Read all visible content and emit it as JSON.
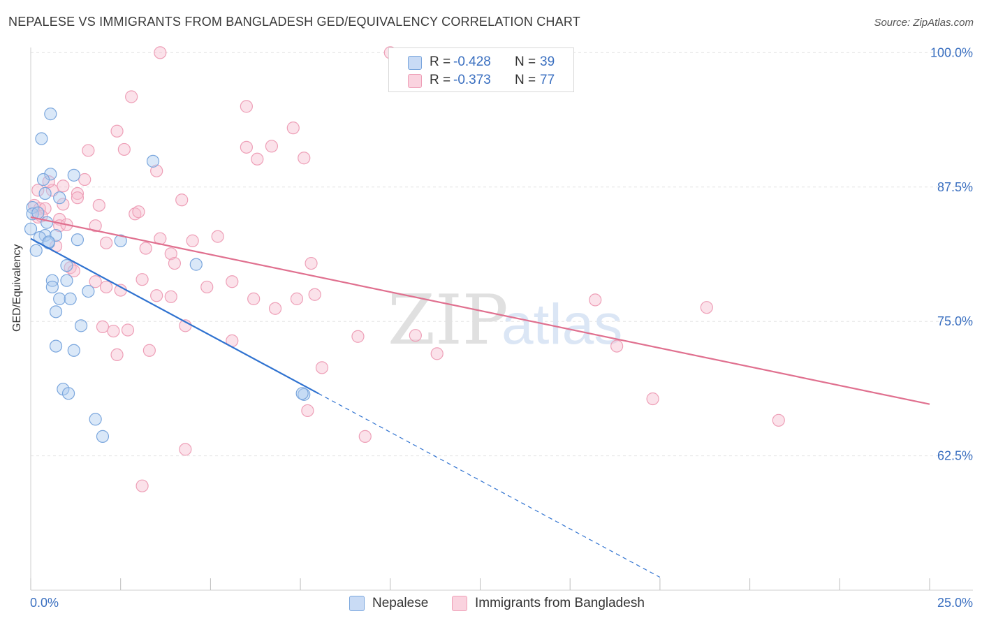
{
  "title": "NEPALESE VS IMMIGRANTS FROM BANGLADESH GED/EQUIVALENCY CORRELATION CHART",
  "source": "Source: ZipAtlas.com",
  "watermark": {
    "zip": "ZIP",
    "atlas": "atlas"
  },
  "legend_top": {
    "r_label": "R =",
    "n_label": "N =",
    "rows": [
      {
        "r": "-0.428",
        "n": "39"
      },
      {
        "r": "-0.373",
        "n": "77"
      }
    ]
  },
  "colors": {
    "blue_fill": "#aecbf0",
    "blue_stroke": "#7aa6dd",
    "blue_line": "#2f72d0",
    "pink_fill": "#f7bfd0",
    "pink_stroke": "#ee9fb7",
    "pink_line": "#e0708f",
    "tick_label": "#3a6fc0",
    "grid": "#e4e4e4"
  },
  "chart_data": {
    "type": "scatter",
    "title": "NEPALESE VS IMMIGRANTS FROM BANGLADESH GED/EQUIVALENCY CORRELATION CHART",
    "xlabel": "",
    "ylabel": "GED/Equivalency",
    "xlim": [
      0,
      25
    ],
    "ylim": [
      50,
      101
    ],
    "x_tick_labels": [
      "0.0%",
      "25.0%"
    ],
    "y_ticks": [
      62.5,
      75.0,
      87.5,
      100.0
    ],
    "y_tick_labels": [
      "62.5%",
      "75.0%",
      "87.5%",
      "100.0%"
    ],
    "series": [
      {
        "name": "Nepalese",
        "color": "#aecbf0",
        "trend": {
          "x0": 0.0,
          "y0": 82.7,
          "x1": 8.0,
          "y1": 68.3,
          "dash_to_x": 17.5
        },
        "points": [
          [
            0.55,
            94.3
          ],
          [
            0.3,
            92.0
          ],
          [
            0.55,
            88.7
          ],
          [
            0.35,
            88.2
          ],
          [
            1.2,
            88.6
          ],
          [
            3.4,
            89.9
          ],
          [
            0.4,
            86.9
          ],
          [
            0.8,
            86.5
          ],
          [
            0.05,
            85.6
          ],
          [
            0.05,
            85.0
          ],
          [
            0.45,
            84.2
          ],
          [
            0.0,
            83.6
          ],
          [
            0.4,
            83.0
          ],
          [
            0.7,
            83.0
          ],
          [
            0.25,
            82.8
          ],
          [
            1.3,
            82.6
          ],
          [
            2.5,
            82.5
          ],
          [
            0.5,
            82.3
          ],
          [
            0.15,
            81.6
          ],
          [
            1.0,
            80.2
          ],
          [
            4.6,
            80.3
          ],
          [
            1.0,
            78.8
          ],
          [
            0.6,
            78.8
          ],
          [
            0.6,
            78.2
          ],
          [
            1.6,
            77.8
          ],
          [
            0.8,
            77.1
          ],
          [
            1.1,
            77.1
          ],
          [
            0.7,
            75.9
          ],
          [
            1.4,
            74.6
          ],
          [
            0.7,
            72.7
          ],
          [
            1.2,
            72.3
          ],
          [
            0.9,
            68.7
          ],
          [
            1.05,
            68.3
          ],
          [
            7.6,
            68.2
          ],
          [
            7.55,
            68.3
          ],
          [
            1.8,
            65.9
          ],
          [
            2.0,
            64.3
          ],
          [
            0.2,
            85.1
          ],
          [
            0.5,
            82.4
          ]
        ]
      },
      {
        "name": "Immigrants from Bangladesh",
        "color": "#f7bfd0",
        "trend": {
          "x0": 0.0,
          "y0": 84.7,
          "x1": 25.0,
          "y1": 67.3
        },
        "points": [
          [
            3.6,
            100.0
          ],
          [
            10.0,
            100.0
          ],
          [
            2.8,
            95.9
          ],
          [
            6.0,
            95.0
          ],
          [
            2.4,
            92.7
          ],
          [
            7.3,
            93.0
          ],
          [
            1.6,
            90.9
          ],
          [
            2.6,
            91.0
          ],
          [
            6.0,
            91.2
          ],
          [
            6.7,
            91.3
          ],
          [
            6.3,
            90.1
          ],
          [
            7.6,
            90.2
          ],
          [
            3.5,
            89.0
          ],
          [
            1.5,
            88.2
          ],
          [
            0.9,
            87.6
          ],
          [
            0.6,
            87.2
          ],
          [
            0.2,
            87.2
          ],
          [
            1.3,
            86.9
          ],
          [
            4.2,
            86.3
          ],
          [
            1.3,
            86.5
          ],
          [
            0.9,
            85.9
          ],
          [
            1.9,
            85.8
          ],
          [
            0.1,
            85.8
          ],
          [
            0.25,
            85.5
          ],
          [
            0.4,
            85.5
          ],
          [
            2.9,
            85.0
          ],
          [
            3.0,
            85.2
          ],
          [
            0.8,
            84.5
          ],
          [
            0.2,
            84.7
          ],
          [
            0.3,
            84.8
          ],
          [
            0.8,
            83.9
          ],
          [
            1.8,
            83.9
          ],
          [
            5.2,
            82.9
          ],
          [
            3.6,
            82.7
          ],
          [
            4.5,
            82.5
          ],
          [
            2.1,
            82.3
          ],
          [
            0.7,
            82.0
          ],
          [
            3.2,
            81.8
          ],
          [
            3.9,
            81.3
          ],
          [
            4.0,
            80.4
          ],
          [
            7.8,
            80.4
          ],
          [
            1.1,
            80.0
          ],
          [
            1.2,
            79.7
          ],
          [
            3.1,
            78.9
          ],
          [
            5.6,
            78.7
          ],
          [
            1.8,
            78.7
          ],
          [
            2.1,
            78.2
          ],
          [
            4.9,
            78.2
          ],
          [
            2.5,
            77.9
          ],
          [
            7.9,
            77.5
          ],
          [
            3.5,
            77.4
          ],
          [
            3.9,
            77.3
          ],
          [
            6.2,
            77.1
          ],
          [
            7.4,
            77.1
          ],
          [
            15.7,
            77.0
          ],
          [
            18.8,
            76.3
          ],
          [
            6.8,
            76.2
          ],
          [
            2.0,
            74.5
          ],
          [
            4.3,
            74.6
          ],
          [
            2.3,
            74.1
          ],
          [
            2.7,
            74.2
          ],
          [
            9.1,
            73.6
          ],
          [
            10.7,
            73.7
          ],
          [
            5.6,
            73.2
          ],
          [
            16.3,
            72.7
          ],
          [
            3.3,
            72.3
          ],
          [
            11.3,
            72.0
          ],
          [
            2.4,
            71.9
          ],
          [
            8.1,
            70.7
          ],
          [
            17.3,
            67.8
          ],
          [
            7.7,
            66.7
          ],
          [
            20.8,
            65.8
          ],
          [
            9.3,
            64.3
          ],
          [
            4.3,
            63.1
          ],
          [
            3.1,
            59.7
          ],
          [
            0.5,
            88.0
          ],
          [
            1.0,
            84.0
          ]
        ]
      }
    ]
  },
  "bottom_legend": [
    {
      "label": "Nepalese"
    },
    {
      "label": "Immigrants from Bangladesh"
    }
  ]
}
